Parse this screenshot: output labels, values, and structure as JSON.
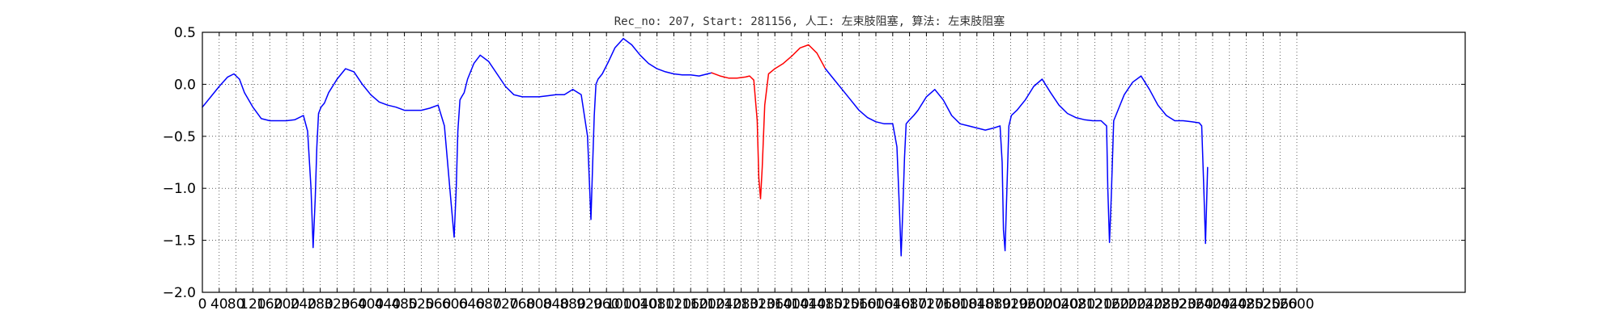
{
  "chart_data": {
    "type": "line",
    "title": "Rec_no: 207, Start: 281156, 人工: 左束肢阻塞, 算法: 左束肢阻塞",
    "xlabel": "",
    "ylabel": "",
    "xlim": [
      0,
      3000
    ],
    "ylim": [
      -2.0,
      0.5
    ],
    "grid": true,
    "x_ticks": [
      0,
      40,
      80,
      120,
      160,
      200,
      240,
      280,
      320,
      360,
      400,
      440,
      480,
      520,
      560,
      600,
      640,
      680,
      720,
      760,
      800,
      840,
      880,
      920,
      960,
      1000,
      1040,
      1080,
      1120,
      1160,
      1200,
      1240,
      1280,
      1320,
      1360,
      1400,
      1440,
      1480,
      1520,
      1560,
      1600,
      1640,
      1680,
      1720,
      1760,
      1800,
      1840,
      1880,
      1920,
      1960,
      2000,
      2040,
      2080,
      2120,
      2160,
      2200,
      2240,
      2280,
      2320,
      2360,
      2400,
      2440,
      2480,
      2520,
      2560,
      2600
    ],
    "x_tick_labels": [
      "0",
      "40",
      "80",
      "120",
      "160",
      "200",
      "240",
      "280",
      "320",
      "360",
      "400",
      "440",
      "480",
      "520",
      "560",
      "600",
      "640",
      "680",
      "720",
      "760",
      "800",
      "840",
      "880",
      "920",
      "960",
      "1000",
      "1040",
      "1080",
      "1120",
      "1160",
      "1200",
      "1240",
      "1280",
      "1320",
      "1360",
      "1400",
      "1440",
      "1480",
      "1520",
      "1560",
      "1600",
      "1640",
      "1680",
      "1720",
      "1760",
      "1800",
      "1840",
      "1880",
      "1920",
      "1960",
      "2000",
      "2040",
      "2080",
      "2120",
      "2160",
      "2200",
      "2240",
      "2280",
      "2320",
      "2360",
      "2400",
      "2440",
      "2480",
      "2520",
      "2560",
      "2600"
    ],
    "y_ticks": [
      0.5,
      0.0,
      -0.5,
      -1.0,
      -1.5,
      -2.0
    ],
    "y_tick_labels": [
      "0.5",
      "0.0",
      "−0.5",
      "−1.0",
      "−1.5",
      "−2.0"
    ],
    "series": [
      {
        "color": "#0000ff",
        "x": [
          0,
          20,
          40,
          60,
          75,
          88,
          100,
          120,
          140,
          160,
          180,
          200,
          220,
          240,
          250,
          258,
          263,
          268,
          272,
          276,
          282,
          290,
          300,
          320,
          340,
          360,
          380,
          400,
          420,
          440,
          460,
          480,
          500,
          520,
          540,
          560,
          575,
          590,
          598,
          603,
          607,
          612,
          616,
          622,
          630,
          645,
          660,
          680,
          700,
          720,
          740,
          760,
          780,
          800,
          820,
          840,
          860,
          880,
          900,
          915,
          923,
          927,
          931,
          935,
          940,
          950,
          965,
          980,
          1000,
          1020,
          1040,
          1060,
          1080,
          1100,
          1120,
          1140,
          1160,
          1180,
          1200,
          1210
        ],
        "y": [
          -0.22,
          -0.12,
          -0.02,
          0.07,
          0.1,
          0.05,
          -0.08,
          -0.22,
          -0.33,
          -0.35,
          -0.35,
          -0.35,
          -0.34,
          -0.3,
          -0.45,
          -1.0,
          -1.57,
          -1.1,
          -0.6,
          -0.28,
          -0.22,
          -0.18,
          -0.08,
          0.05,
          0.15,
          0.12,
          0.0,
          -0.1,
          -0.17,
          -0.2,
          -0.22,
          -0.25,
          -0.25,
          -0.25,
          -0.23,
          -0.2,
          -0.4,
          -1.1,
          -1.47,
          -1.0,
          -0.45,
          -0.15,
          -0.12,
          -0.08,
          0.05,
          0.2,
          0.28,
          0.22,
          0.1,
          -0.02,
          -0.1,
          -0.12,
          -0.12,
          -0.12,
          -0.11,
          -0.1,
          -0.1,
          -0.05,
          -0.1,
          -0.5,
          -1.3,
          -0.8,
          -0.3,
          0.0,
          0.05,
          0.1,
          0.22,
          0.35,
          0.44,
          0.38,
          0.28,
          0.2,
          0.15,
          0.12,
          0.1,
          0.09,
          0.09,
          0.08,
          0.1,
          0.11
        ]
      },
      {
        "color": "#ff0000",
        "x": [
          1210,
          1230,
          1250,
          1270,
          1290,
          1300,
          1310,
          1318,
          1322,
          1326,
          1330,
          1336,
          1345,
          1360,
          1380,
          1400,
          1420,
          1440,
          1460,
          1480
        ],
        "y": [
          0.11,
          0.08,
          0.06,
          0.06,
          0.07,
          0.08,
          0.04,
          -0.35,
          -0.9,
          -1.1,
          -0.8,
          -0.2,
          0.1,
          0.15,
          0.2,
          0.27,
          0.35,
          0.38,
          0.3,
          0.15
        ]
      },
      {
        "color": "#0000ff",
        "x": [
          1480,
          1500,
          1520,
          1540,
          1560,
          1580,
          1600,
          1620,
          1640,
          1650,
          1656,
          1660,
          1664,
          1668,
          1672,
          1678,
          1690,
          1700,
          1720,
          1740,
          1760,
          1780,
          1800,
          1820,
          1840,
          1860,
          1880,
          1895,
          1900,
          1903,
          1907,
          1911,
          1916,
          1922,
          1935,
          1955,
          1975,
          1995,
          2015,
          2035,
          2055,
          2075,
          2095,
          2115,
          2135,
          2148,
          2151,
          2155,
          2159,
          2165,
          2175,
          2190,
          2210,
          2230,
          2250,
          2270,
          2290,
          2310,
          2330,
          2350,
          2368,
          2374,
          2379,
          2383,
          2388
        ],
        "y": [
          0.15,
          0.05,
          -0.05,
          -0.15,
          -0.25,
          -0.32,
          -0.36,
          -0.38,
          -0.38,
          -0.6,
          -1.2,
          -1.65,
          -1.2,
          -0.7,
          -0.38,
          -0.35,
          -0.3,
          -0.25,
          -0.12,
          -0.05,
          -0.15,
          -0.3,
          -0.38,
          -0.4,
          -0.42,
          -0.44,
          -0.42,
          -0.4,
          -0.75,
          -1.4,
          -1.6,
          -1.05,
          -0.4,
          -0.3,
          -0.25,
          -0.15,
          -0.02,
          0.05,
          -0.08,
          -0.2,
          -0.28,
          -0.32,
          -0.34,
          -0.35,
          -0.35,
          -0.4,
          -1.0,
          -1.52,
          -1.1,
          -0.35,
          -0.25,
          -0.1,
          0.02,
          0.08,
          -0.05,
          -0.2,
          -0.3,
          -0.35,
          -0.35,
          -0.36,
          -0.37,
          -0.4,
          -1.0,
          -1.53,
          -0.8
        ]
      }
    ]
  }
}
